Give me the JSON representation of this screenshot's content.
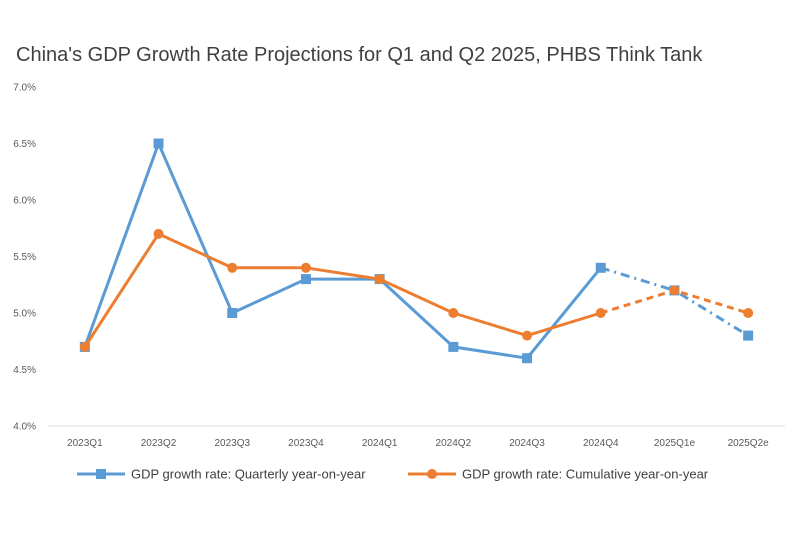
{
  "colors": {
    "series_blue": "#5b9bd5",
    "series_orange": "#ed7d31",
    "axis": "#d9d9d9"
  },
  "chart_data": {
    "type": "line",
    "title": "China's GDP Growth Rate Projections for Q1 and Q2 2025, PHBS Think Tank",
    "xlabel": "",
    "ylabel": "",
    "categories": [
      "2023Q1",
      "2023Q2",
      "2023Q3",
      "2023Q4",
      "2024Q1",
      "2024Q2",
      "2024Q3",
      "2024Q4",
      "2025Q1e",
      "2025Q2e"
    ],
    "ylim": [
      4.0,
      7.0
    ],
    "yticks": [
      4.0,
      4.5,
      5.0,
      5.5,
      6.0,
      6.5,
      7.0
    ],
    "ytick_labels": [
      "4.0%",
      "4.5%",
      "5.0%",
      "5.5%",
      "6.0%",
      "6.5%",
      "7.0%"
    ],
    "grid": false,
    "legend_position": "bottom",
    "series": [
      {
        "name": "GDP growth rate: Quarterly year-on-year",
        "marker": "square",
        "projection_style": "dash-dot",
        "projected_from_index": 7,
        "values": [
          4.7,
          6.5,
          5.0,
          5.3,
          5.3,
          4.7,
          4.6,
          5.4,
          5.2,
          4.8
        ]
      },
      {
        "name": "GDP growth rate: Cumulative year-on-year",
        "marker": "circle",
        "projection_style": "dashed",
        "projected_from_index": 7,
        "values": [
          4.7,
          5.7,
          5.4,
          5.4,
          5.3,
          5.0,
          4.8,
          5.0,
          5.2,
          5.0
        ]
      }
    ]
  }
}
